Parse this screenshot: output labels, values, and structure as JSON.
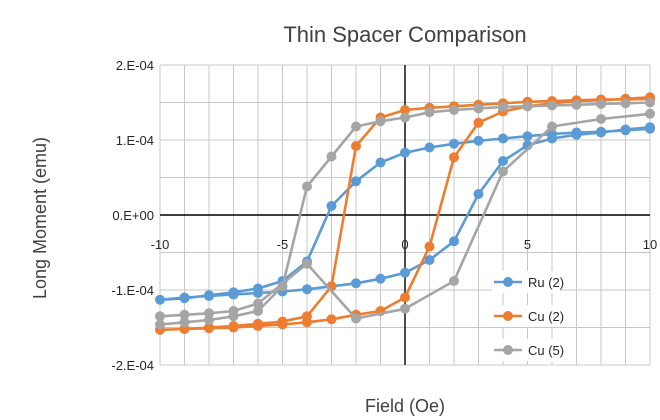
{
  "chart_data": {
    "type": "scatter",
    "title": "Thin Spacer Comparison",
    "xlabel": "Field (Oe)",
    "ylabel": "Long Moment (emu)",
    "xlim": [
      -10,
      10
    ],
    "ylim": [
      -0.0002,
      0.0002
    ],
    "x_ticks": [
      "-10",
      "-5",
      "0",
      "5",
      "10"
    ],
    "y_ticks": [
      "2.E-04",
      "1.E-04",
      "0.E+00",
      "-1.E-04",
      "-2.E-04"
    ],
    "grid": true,
    "legend_position": "bottom-right",
    "series": [
      {
        "name": "Ru (2)",
        "color": "#5b9bd5",
        "points": [
          [
            10,
            0.000115
          ],
          [
            9,
            0.000113
          ],
          [
            8,
            0.000111
          ],
          [
            7,
            0.00011
          ],
          [
            6,
            0.000108
          ],
          [
            5,
            0.000105
          ],
          [
            4,
            0.000102
          ],
          [
            3,
            9.9e-05
          ],
          [
            2,
            9.5e-05
          ],
          [
            1,
            9e-05
          ],
          [
            0,
            8.3e-05
          ],
          [
            -1,
            7e-05
          ],
          [
            -2,
            4.5e-05
          ],
          [
            -3,
            1.2e-05
          ],
          [
            -4,
            -6.2e-05
          ],
          [
            -5,
            -8.8e-05
          ],
          [
            -6,
            -9.8e-05
          ],
          [
            -7,
            -0.000103
          ],
          [
            -8,
            -0.000107
          ],
          [
            -9,
            -0.000111
          ],
          [
            -10,
            -0.000113
          ],
          [
            -9,
            -0.00011
          ],
          [
            -8,
            -0.000108
          ],
          [
            -7,
            -0.000106
          ],
          [
            -6,
            -0.000104
          ],
          [
            -5,
            -0.000102
          ],
          [
            -4,
            -9.9e-05
          ],
          [
            -3,
            -9.5e-05
          ],
          [
            -2,
            -9.1e-05
          ],
          [
            -1,
            -8.5e-05
          ],
          [
            0,
            -7.7e-05
          ],
          [
            1,
            -6e-05
          ],
          [
            2,
            -3.5e-05
          ],
          [
            3,
            2.8e-05
          ],
          [
            4,
            7.2e-05
          ],
          [
            5,
            9.3e-05
          ],
          [
            6,
            0.000102
          ],
          [
            7,
            0.000107
          ],
          [
            8,
            0.00011
          ],
          [
            9,
            0.000114
          ],
          [
            10,
            0.000117
          ]
        ]
      },
      {
        "name": "Cu (2)",
        "color": "#ed7d31",
        "points": [
          [
            10,
            0.000155
          ],
          [
            9,
            0.000154
          ],
          [
            8,
            0.000154
          ],
          [
            7,
            0.000153
          ],
          [
            6,
            0.000152
          ],
          [
            5,
            0.000151
          ],
          [
            4,
            0.000149
          ],
          [
            3,
            0.000147
          ],
          [
            2,
            0.000145
          ],
          [
            1,
            0.000143
          ],
          [
            0,
            0.00014
          ],
          [
            -1,
            0.00013
          ],
          [
            -2,
            9.2e-05
          ],
          [
            -3,
            -9.5e-05
          ],
          [
            -4,
            -0.000135
          ],
          [
            -5,
            -0.000142
          ],
          [
            -6,
            -0.000145
          ],
          [
            -7,
            -0.000148
          ],
          [
            -8,
            -0.00015
          ],
          [
            -9,
            -0.000152
          ],
          [
            -10,
            -0.000153
          ],
          [
            -9,
            -0.000152
          ],
          [
            -8,
            -0.000151
          ],
          [
            -7,
            -0.00015
          ],
          [
            -6,
            -0.000148
          ],
          [
            -5,
            -0.000146
          ],
          [
            -4,
            -0.000143
          ],
          [
            -3,
            -0.000139
          ],
          [
            -2,
            -0.000133
          ],
          [
            -1,
            -0.000128
          ],
          [
            0,
            -0.00011
          ],
          [
            1,
            -4.2e-05
          ],
          [
            2,
            7.7e-05
          ],
          [
            3,
            0.000123
          ],
          [
            4,
            0.000138
          ],
          [
            5,
            0.000145
          ],
          [
            6,
            0.000149
          ],
          [
            7,
            0.000152
          ],
          [
            8,
            0.000153
          ],
          [
            9,
            0.000155
          ],
          [
            10,
            0.000157
          ]
        ]
      },
      {
        "name": "Cu (5)",
        "color": "#a5a5a5",
        "points": [
          [
            10,
            0.00015
          ],
          [
            9,
            0.000149
          ],
          [
            8,
            0.000148
          ],
          [
            7,
            0.000147
          ],
          [
            6,
            0.000146
          ],
          [
            5,
            0.000145
          ],
          [
            4,
            0.000144
          ],
          [
            3,
            0.000142
          ],
          [
            2,
            0.00014
          ],
          [
            1,
            0.000137
          ],
          [
            0,
            0.00013
          ],
          [
            -1,
            0.000125
          ],
          [
            -2,
            0.000118
          ],
          [
            -3,
            7.8e-05
          ],
          [
            -4,
            3.8e-05
          ],
          [
            -5,
            -9.5e-05
          ],
          [
            -6,
            -0.000128
          ],
          [
            -7,
            -0.000135
          ],
          [
            -8,
            -0.00014
          ],
          [
            -9,
            -0.000143
          ],
          [
            -10,
            -0.000146
          ],
          [
            -10,
            -0.000135
          ],
          [
            -9,
            -0.000133
          ],
          [
            -8,
            -0.000131
          ],
          [
            -7,
            -0.000128
          ],
          [
            -6,
            -0.000118
          ],
          [
            -4,
            -6.5e-05
          ],
          [
            -2,
            -0.000138
          ],
          [
            0,
            -0.000125
          ],
          [
            2,
            -8.8e-05
          ],
          [
            4,
            5.8e-05
          ],
          [
            6,
            0.000118
          ],
          [
            8,
            0.000128
          ],
          [
            10,
            0.000135
          ]
        ]
      }
    ]
  }
}
